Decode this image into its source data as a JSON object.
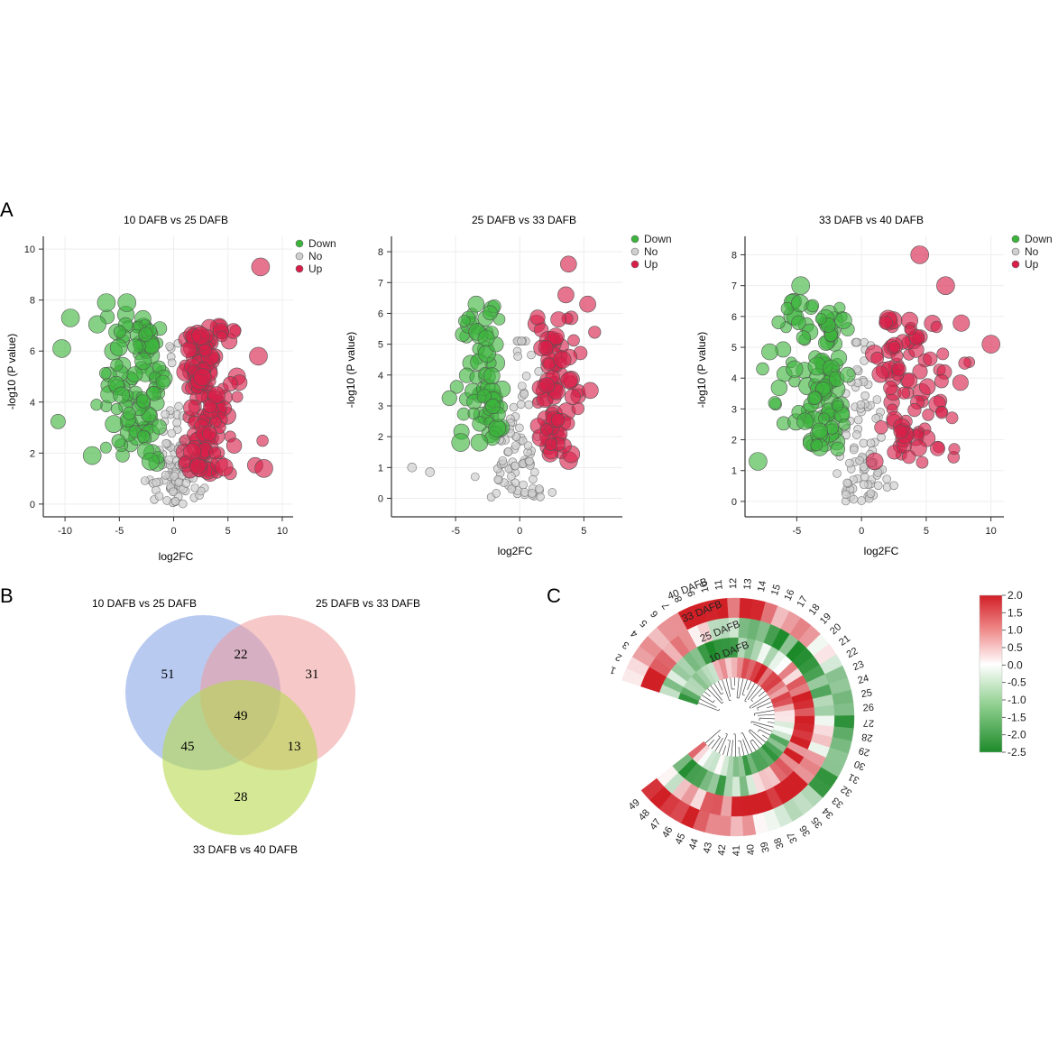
{
  "panel_labels": {
    "a": "A",
    "b": "B",
    "c": "C"
  },
  "colors": {
    "down": "#3cb43c",
    "no": "#cfcfcf",
    "up": "#d81e48",
    "venn_a": "#7f9fe6",
    "venn_b": "#ef9a9a",
    "venn_c": "#b8d84e",
    "heat_high": "#d11f26",
    "heat_mid": "#ffffff",
    "heat_low": "#1d8a2a"
  },
  "chart_data": [
    {
      "type": "scatter",
      "title": "10 DAFB vs 25 DAFB",
      "xlabel": "log2FC",
      "ylabel": "-log10 (P value)",
      "xlim": [
        -12,
        11
      ],
      "ylim": [
        -0.5,
        10.5
      ],
      "xticks": [
        -10,
        -5,
        0,
        5,
        10
      ],
      "yticks": [
        0,
        2,
        4,
        6,
        8,
        10
      ],
      "legend": [
        "Down",
        "No",
        "Up"
      ],
      "highlight_points": [
        {
          "x": 8,
          "y": 9.3,
          "group": "Up"
        },
        {
          "x": 7.8,
          "y": 5.8,
          "group": "Up"
        },
        {
          "x": 8.3,
          "y": 1.4,
          "group": "Up"
        },
        {
          "x": -9.5,
          "y": 7.3,
          "group": "Down"
        },
        {
          "x": -6.2,
          "y": 7.9,
          "group": "Down"
        },
        {
          "x": -4.3,
          "y": 7.9,
          "group": "Down"
        },
        {
          "x": -10.3,
          "y": 6.1,
          "group": "Down"
        },
        {
          "x": -7.5,
          "y": 1.9,
          "group": "Down"
        },
        {
          "x": 2.5,
          "y": 6.6,
          "group": "Up"
        }
      ]
    },
    {
      "type": "scatter",
      "title": "25 DAFB vs 33 DAFB",
      "xlabel": "log2FC",
      "ylabel": "-log10 (P value)",
      "xlim": [
        -10,
        8
      ],
      "ylim": [
        -0.6,
        8.5
      ],
      "xticks": [
        -5,
        0,
        5
      ],
      "yticks": [
        0,
        1,
        2,
        3,
        4,
        5,
        6,
        7,
        8
      ],
      "legend": [
        "Down",
        "No",
        "Up"
      ],
      "highlight_points": [
        {
          "x": 3.8,
          "y": 7.6,
          "group": "Up"
        },
        {
          "x": 3.6,
          "y": 6.6,
          "group": "Up"
        },
        {
          "x": 5.3,
          "y": 6.3,
          "group": "Up"
        },
        {
          "x": 5.5,
          "y": 3.5,
          "group": "Up"
        },
        {
          "x": -3.4,
          "y": 6.3,
          "group": "Down"
        },
        {
          "x": -8.4,
          "y": 1.0,
          "group": "No"
        },
        {
          "x": -7.0,
          "y": 0.85,
          "group": "No"
        }
      ]
    },
    {
      "type": "scatter",
      "title": "33 DAFB vs 40 DAFB",
      "xlabel": "log2FC",
      "ylabel": "-log10 (P value)",
      "xlim": [
        -9,
        11
      ],
      "ylim": [
        -0.5,
        8.6
      ],
      "xticks": [
        -5,
        0,
        5,
        10
      ],
      "yticks": [
        0,
        1,
        2,
        3,
        4,
        5,
        6,
        7,
        8
      ],
      "legend": [
        "Down",
        "No",
        "Up"
      ],
      "highlight_points": [
        {
          "x": 4.5,
          "y": 8.0,
          "group": "Up"
        },
        {
          "x": 6.5,
          "y": 7.0,
          "group": "Up"
        },
        {
          "x": -4.7,
          "y": 7.0,
          "group": "Down"
        },
        {
          "x": -8.0,
          "y": 1.3,
          "group": "Down"
        },
        {
          "x": 10.0,
          "y": 5.1,
          "group": "Up"
        }
      ]
    }
  ],
  "venn": {
    "sets": [
      "10 DAFB vs 25 DAFB",
      "25 DAFB vs 33 DAFB",
      "33 DAFB vs 40 DAFB"
    ],
    "regions": {
      "a_only": "51",
      "ab": "22",
      "b_only": "31",
      "abc": "49",
      "ac": "45",
      "bc": "13",
      "c_only": "28"
    }
  },
  "heatmap": {
    "rings": [
      "40 DAFB",
      "33 DAFB",
      "25 DAFB",
      "10 DAFB"
    ],
    "leaf_labels": [
      "1",
      "2",
      "3",
      "4",
      "5",
      "6",
      "7",
      "8",
      "9",
      "10",
      "11",
      "12",
      "13",
      "14",
      "15",
      "16",
      "17",
      "18",
      "19",
      "20",
      "21",
      "22",
      "23",
      "24",
      "25",
      "26",
      "27",
      "28",
      "29",
      "30",
      "31",
      "32",
      "33",
      "34",
      "35",
      "36",
      "37",
      "38",
      "39",
      "40",
      "41",
      "42",
      "43",
      "44",
      "45",
      "46",
      "47",
      "48",
      "49"
    ],
    "colorbar_ticks": [
      "2.0",
      "1.5",
      "1.0",
      "0.5",
      "0.0",
      "-0.5",
      "-1.0",
      "-1.5",
      "-2.0",
      "-2.5"
    ],
    "colorbar_range": [
      -2.5,
      2.0
    ]
  }
}
